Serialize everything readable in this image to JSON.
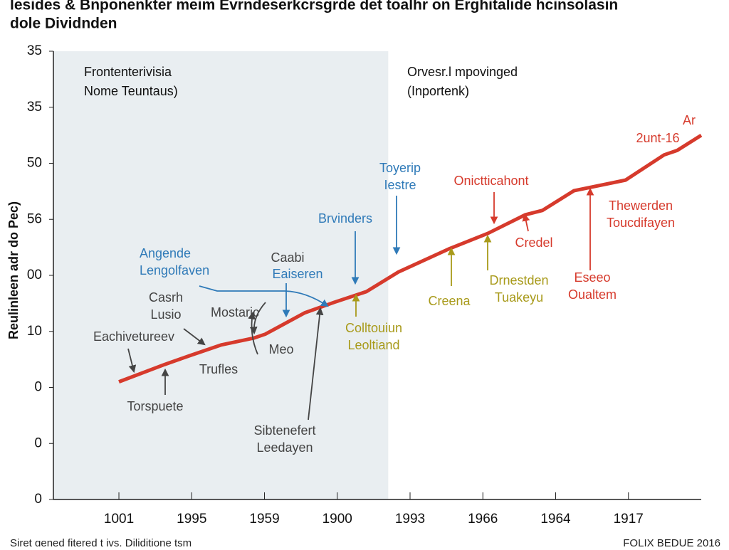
{
  "chart_data": {
    "type": "line",
    "title": [
      "lesides & Bnponenkter meim Evrndeserkcrsgrde det toalhr on Erghitalide hcinsolasin",
      "dole Dividnden"
    ],
    "y_label": "Reulinleen adr do Pec)",
    "xlim": [
      -0.9,
      8
    ],
    "ylim": [
      0,
      8
    ],
    "xticks": [
      {
        "value": 0,
        "label": "1001"
      },
      {
        "value": 1,
        "label": "1995"
      },
      {
        "value": 2,
        "label": "1959"
      },
      {
        "value": 3,
        "label": "1900"
      },
      {
        "value": 4,
        "label": "1993"
      },
      {
        "value": 5,
        "label": "1966"
      },
      {
        "value": 6,
        "label": "1964"
      },
      {
        "value": 7,
        "label": "1917"
      }
    ],
    "yticks": [
      0,
      {
        "value": 1,
        "label": "0"
      },
      {
        "value": 2,
        "label": "0"
      },
      {
        "value": 3,
        "label": "10"
      },
      {
        "value": 4,
        "label": "00"
      },
      {
        "value": 5,
        "label": "56"
      },
      {
        "value": 6,
        "label": "50"
      },
      {
        "value": 7,
        "label": "35"
      },
      {
        "value": 8,
        "label": "35"
      }
    ],
    "shaded_span": [
      -0.9,
      3.7
    ],
    "regions": [
      {
        "lines": [
          "Frontenterivisia",
          "Nome Teuntaus)"
        ]
      },
      {
        "lines": [
          "Orvesr.l mpovinged",
          "(Inportenk)"
        ]
      }
    ],
    "series": [
      {
        "color": "#d63a2c",
        "x": [
          0,
          0.63,
          0.98,
          1.41,
          1.85,
          2.01,
          2.55,
          2.96,
          3.4,
          3.84,
          4.53,
          5.07,
          5.58,
          5.82,
          6.25,
          6.96,
          7.49,
          7.67,
          8.0
        ],
        "values": [
          2.1,
          2.41,
          2.57,
          2.76,
          2.88,
          2.95,
          3.33,
          3.52,
          3.71,
          4.06,
          4.47,
          4.75,
          5.08,
          5.16,
          5.51,
          5.7,
          6.15,
          6.23,
          6.5
        ]
      }
    ],
    "annotations": [
      {
        "lines": [
          "Toyerip",
          "Iestre"
        ],
        "color": "#2f7ab8"
      },
      {
        "lines": [
          "Brvinders"
        ],
        "color": "#2f7ab8"
      },
      {
        "lines": [
          "Angende",
          "Lengolfaven"
        ],
        "color": "#2f7ab8"
      },
      {
        "lines": [
          "Caabi"
        ],
        "color": "#444"
      },
      {
        "lines": [
          "Eaiseren"
        ],
        "color": "#2f7ab8"
      },
      {
        "lines": [
          "Casrh",
          "Lusio"
        ],
        "color": "#444"
      },
      {
        "lines": [
          "Mostaric"
        ],
        "color": "#444"
      },
      {
        "lines": [
          "Eachivetureev"
        ],
        "color": "#444"
      },
      {
        "lines": [
          "Trufles"
        ],
        "color": "#444"
      },
      {
        "lines": [
          "Meo"
        ],
        "color": "#444"
      },
      {
        "lines": [
          "Torspuete"
        ],
        "color": "#444"
      },
      {
        "lines": [
          "Sibtenefert",
          "Leedayen"
        ],
        "color": "#444"
      },
      {
        "lines": [
          "Colltouiun",
          "Leoltiand"
        ],
        "color": "#a89a1a"
      },
      {
        "lines": [
          "Onictticahont"
        ],
        "color": "#d63a2c"
      },
      {
        "lines": [
          "Credel"
        ],
        "color": "#d63a2c"
      },
      {
        "lines": [
          "Thewerden",
          "Toucdifayen"
        ],
        "color": "#d63a2c"
      },
      {
        "lines": [
          "Eseeo",
          "Oualtem"
        ],
        "color": "#d63a2c"
      },
      {
        "lines": [
          "Creena"
        ],
        "color": "#a89a1a"
      },
      {
        "lines": [
          "Drnestden",
          "Tuakeyu"
        ],
        "color": "#a89a1a"
      },
      {
        "lines": [
          "Ar"
        ],
        "color": "#d63a2c"
      },
      {
        "lines": [
          "2unt-16"
        ],
        "color": "#d63a2c"
      }
    ],
    "footer": [
      "Siret gened fitered t ivs. Diliditione tsm",
      "FOLIX BEDUE 2016"
    ]
  }
}
